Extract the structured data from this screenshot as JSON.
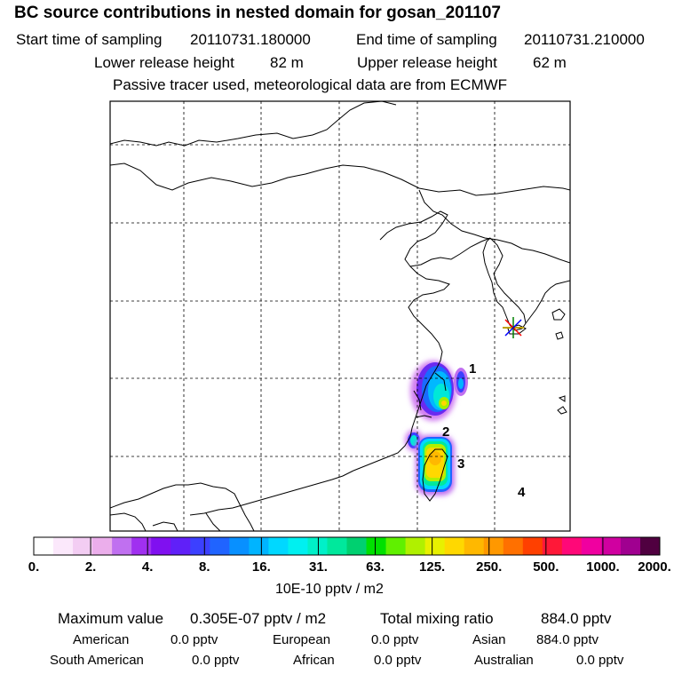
{
  "header": {
    "title": "BC  source contributions in nested domain for gosan_201107",
    "start_label": "Start time of sampling",
    "start_value": "20110731.180000",
    "end_label": "End time of sampling",
    "end_value": "20110731.210000",
    "lower_label": "Lower release height",
    "lower_value": "82 m",
    "upper_label": "Upper release height",
    "upper_value": "62 m",
    "note": "Passive tracer used, meteorological data are from ECMWF"
  },
  "map": {
    "region_labels": [
      "1",
      "2",
      "3",
      "4"
    ],
    "receptor_marker": "gosan-receptor-star",
    "colors": {
      "grid": "#000000",
      "coast": "#000000",
      "receptor": "#ff0000"
    }
  },
  "colorbar": {
    "tick_labels": [
      "0.",
      "2.",
      "4.",
      "8.",
      "16.",
      "31.",
      "63.",
      "125.",
      "250.",
      "500.",
      "1000.",
      "2000."
    ],
    "unit_label": "10E-10 pptv / m2",
    "swatches": [
      "#ffffff",
      "#fbe8fb",
      "#f3cdf3",
      "#ebaeeb",
      "#c070f0",
      "#a030f0",
      "#8010f0",
      "#6020f8",
      "#3c40ff",
      "#2064ff",
      "#0890ff",
      "#00b4ff",
      "#00d8ff",
      "#00f0f0",
      "#00f0c8",
      "#00e89c",
      "#00d070",
      "#00e000",
      "#60f000",
      "#b0f000",
      "#e8f000",
      "#ffd800",
      "#ffb800",
      "#ff9800",
      "#ff7000",
      "#ff4000",
      "#ff1838",
      "#ff0878",
      "#f000a0",
      "#d000a0",
      "#a00090",
      "#500040"
    ]
  },
  "stats": {
    "max_label": "Maximum value",
    "max_value": "0.305E-07 pptv / m2",
    "total_label": "Total mixing ratio",
    "total_value": "884.0 pptv",
    "regions": [
      {
        "name": "American",
        "value": "0.0 pptv"
      },
      {
        "name": "European",
        "value": "0.0 pptv"
      },
      {
        "name": "Asian",
        "value": "884.0 pptv"
      },
      {
        "name": "South American",
        "value": "0.0 pptv"
      },
      {
        "name": "African",
        "value": "0.0 pptv"
      },
      {
        "name": "Australian",
        "value": "0.0 pptv"
      }
    ]
  }
}
